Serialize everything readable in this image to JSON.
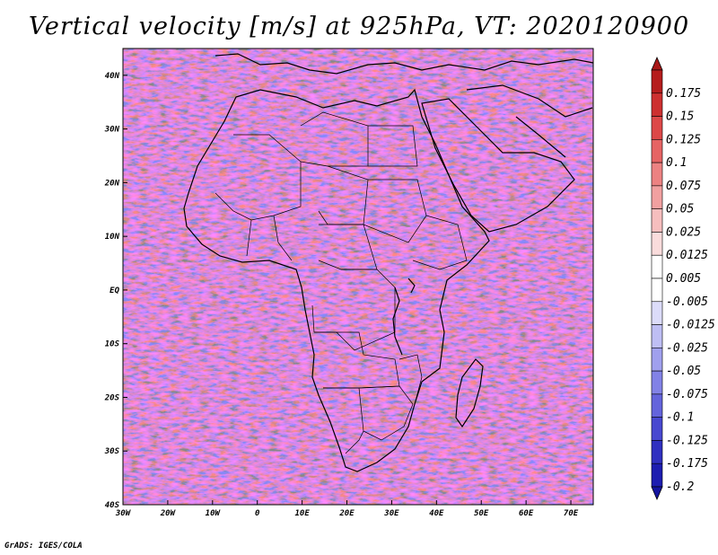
{
  "title": "Vertical velocity [m/s] at 925hPa, VT: 2020120900",
  "credit": "GrADS: IGES/COLA",
  "map": {
    "lon_range": [
      -30,
      75
    ],
    "lat_range": [
      -40,
      45
    ],
    "lon_ticks": [
      {
        "value": -30,
        "label": "30W"
      },
      {
        "value": -20,
        "label": "20W"
      },
      {
        "value": -10,
        "label": "10W"
      },
      {
        "value": 0,
        "label": "0"
      },
      {
        "value": 10,
        "label": "10E"
      },
      {
        "value": 20,
        "label": "20E"
      },
      {
        "value": 30,
        "label": "30E"
      },
      {
        "value": 40,
        "label": "40E"
      },
      {
        "value": 50,
        "label": "50E"
      },
      {
        "value": 60,
        "label": "60E"
      },
      {
        "value": 70,
        "label": "70E"
      }
    ],
    "lat_ticks": [
      {
        "value": 40,
        "label": "40N"
      },
      {
        "value": 30,
        "label": "30N"
      },
      {
        "value": 20,
        "label": "20N"
      },
      {
        "value": 10,
        "label": "10N"
      },
      {
        "value": 0,
        "label": "EQ"
      },
      {
        "value": -10,
        "label": "10S"
      },
      {
        "value": -20,
        "label": "20S"
      },
      {
        "value": -30,
        "label": "30S"
      },
      {
        "value": -40,
        "label": "40S"
      }
    ]
  },
  "colorbar": {
    "levels": [
      {
        "label": "0.175",
        "color": "#b51d1d"
      },
      {
        "label": "0.15",
        "color": "#cd3030"
      },
      {
        "label": "0.125",
        "color": "#dd4848"
      },
      {
        "label": "0.1",
        "color": "#e66464"
      },
      {
        "label": "0.075",
        "color": "#ec8282"
      },
      {
        "label": "0.05",
        "color": "#f1a0a0"
      },
      {
        "label": "0.025",
        "color": "#f6bebe"
      },
      {
        "label": "0.0125",
        "color": "#fadcdc"
      },
      {
        "label": "0.005",
        "color": "#ffffff"
      },
      {
        "label": "-0.005",
        "color": "#ffffff"
      },
      {
        "label": "-0.0125",
        "color": "#dcdcfa"
      },
      {
        "label": "-0.025",
        "color": "#bebef4"
      },
      {
        "label": "-0.05",
        "color": "#a0a0ee"
      },
      {
        "label": "-0.075",
        "color": "#8282e6"
      },
      {
        "label": "-0.1",
        "color": "#6464dc"
      },
      {
        "label": "-0.125",
        "color": "#4848d0"
      },
      {
        "label": "-0.175",
        "color": "#3030c0"
      },
      {
        "label": "-0.2",
        "color": "#1d1db0"
      }
    ],
    "top_color": "#a81818",
    "bottom_color": "#1414a0"
  }
}
